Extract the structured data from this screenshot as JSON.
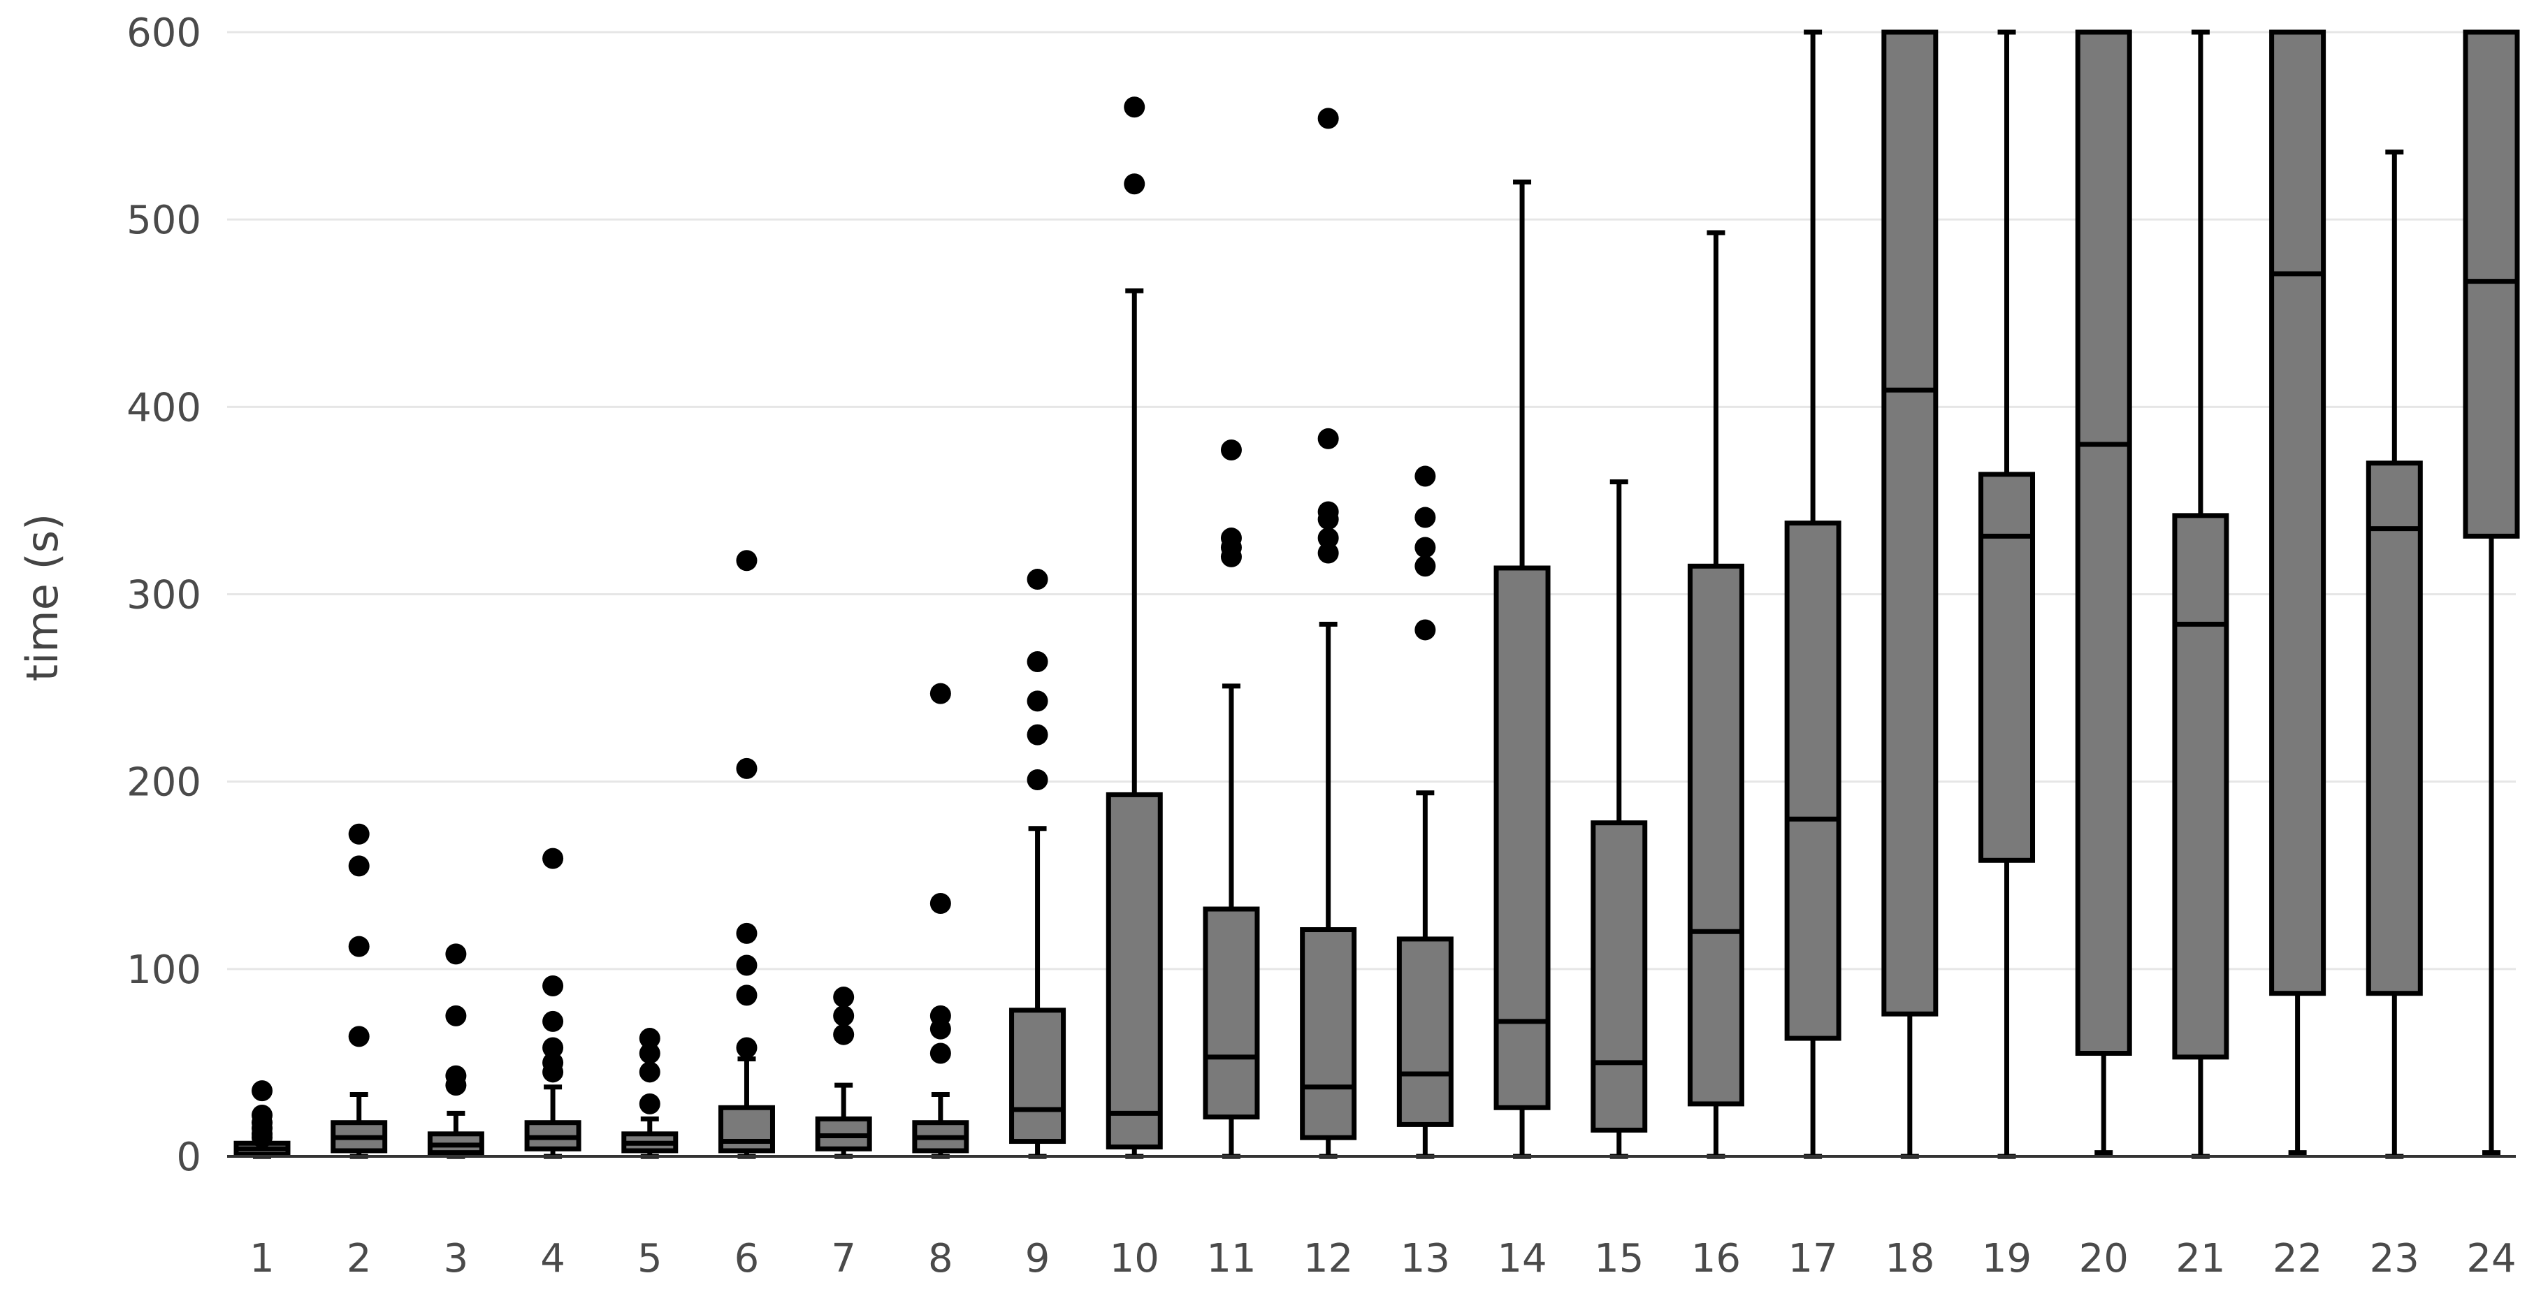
{
  "chart_data": {
    "type": "box",
    "ylabel": "time (s)",
    "xlabel": "",
    "ylim": [
      0,
      600
    ],
    "yticks": [
      0,
      100,
      200,
      300,
      400,
      500,
      600
    ],
    "grid": true,
    "box_color": "#7a7a7a",
    "line_color": "#000000",
    "categories": [
      "1",
      "2",
      "3",
      "4",
      "5",
      "6",
      "7",
      "8",
      "9",
      "10",
      "11",
      "12",
      "13",
      "14",
      "15",
      "16",
      "17",
      "18",
      "19",
      "20",
      "21",
      "22",
      "23",
      "24"
    ],
    "boxes": [
      {
        "q1": 1,
        "median": 4,
        "q3": 7,
        "whisker_low": 0,
        "whisker_high": 8,
        "outliers": [
          35,
          22,
          18,
          15,
          12,
          10
        ]
      },
      {
        "q1": 3,
        "median": 10,
        "q3": 18,
        "whisker_low": 0,
        "whisker_high": 33,
        "outliers": [
          172,
          155,
          112,
          64
        ]
      },
      {
        "q1": 2,
        "median": 6,
        "q3": 12,
        "whisker_low": 0,
        "whisker_high": 23,
        "outliers": [
          108,
          75,
          43,
          38
        ]
      },
      {
        "q1": 4,
        "median": 10,
        "q3": 18,
        "whisker_low": 0,
        "whisker_high": 37,
        "outliers": [
          159,
          91,
          72,
          58,
          50,
          45
        ]
      },
      {
        "q1": 3,
        "median": 7,
        "q3": 12,
        "whisker_low": 0,
        "whisker_high": 20,
        "outliers": [
          63,
          55,
          45,
          28
        ]
      },
      {
        "q1": 3,
        "median": 8,
        "q3": 26,
        "whisker_low": 0,
        "whisker_high": 52,
        "outliers": [
          318,
          207,
          119,
          102,
          86,
          58
        ]
      },
      {
        "q1": 4,
        "median": 11,
        "q3": 20,
        "whisker_low": 0,
        "whisker_high": 38,
        "outliers": [
          85,
          75,
          65
        ]
      },
      {
        "q1": 3,
        "median": 10,
        "q3": 18,
        "whisker_low": 0,
        "whisker_high": 33,
        "outliers": [
          247,
          135,
          75,
          68,
          55
        ]
      },
      {
        "q1": 8,
        "median": 25,
        "q3": 78,
        "whisker_low": 0,
        "whisker_high": 175,
        "outliers": [
          308,
          264,
          243,
          225,
          201
        ]
      },
      {
        "q1": 5,
        "median": 23,
        "q3": 193,
        "whisker_low": 0,
        "whisker_high": 462,
        "outliers": [
          560,
          519
        ]
      },
      {
        "q1": 21,
        "median": 53,
        "q3": 132,
        "whisker_low": 0,
        "whisker_high": 251,
        "outliers": [
          377,
          330,
          325,
          320
        ]
      },
      {
        "q1": 10,
        "median": 37,
        "q3": 121,
        "whisker_low": 0,
        "whisker_high": 284,
        "outliers": [
          554,
          383,
          344,
          340,
          330,
          322
        ]
      },
      {
        "q1": 17,
        "median": 44,
        "q3": 116,
        "whisker_low": 0,
        "whisker_high": 194,
        "outliers": [
          363,
          341,
          325,
          315,
          281
        ]
      },
      {
        "q1": 26,
        "median": 72,
        "q3": 314,
        "whisker_low": 0,
        "whisker_high": 520,
        "outliers": []
      },
      {
        "q1": 14,
        "median": 50,
        "q3": 178,
        "whisker_low": 0,
        "whisker_high": 360,
        "outliers": []
      },
      {
        "q1": 28,
        "median": 120,
        "q3": 315,
        "whisker_low": 0,
        "whisker_high": 493,
        "outliers": []
      },
      {
        "q1": 63,
        "median": 180,
        "q3": 338,
        "whisker_low": 0,
        "whisker_high": 600,
        "outliers": []
      },
      {
        "q1": 76,
        "median": 409,
        "q3": 600,
        "whisker_low": 0,
        "whisker_high": 600,
        "outliers": []
      },
      {
        "q1": 158,
        "median": 331,
        "q3": 364,
        "whisker_low": 0,
        "whisker_high": 600,
        "outliers": []
      },
      {
        "q1": 55,
        "median": 380,
        "q3": 600,
        "whisker_low": 2,
        "whisker_high": 600,
        "outliers": []
      },
      {
        "q1": 53,
        "median": 284,
        "q3": 342,
        "whisker_low": 0,
        "whisker_high": 600,
        "outliers": []
      },
      {
        "q1": 87,
        "median": 471,
        "q3": 600,
        "whisker_low": 2,
        "whisker_high": 600,
        "outliers": []
      },
      {
        "q1": 87,
        "median": 335,
        "q3": 370,
        "whisker_low": 0,
        "whisker_high": 536,
        "outliers": []
      },
      {
        "q1": 331,
        "median": 467,
        "q3": 600,
        "whisker_low": 2,
        "whisker_high": 600,
        "outliers": []
      }
    ]
  }
}
